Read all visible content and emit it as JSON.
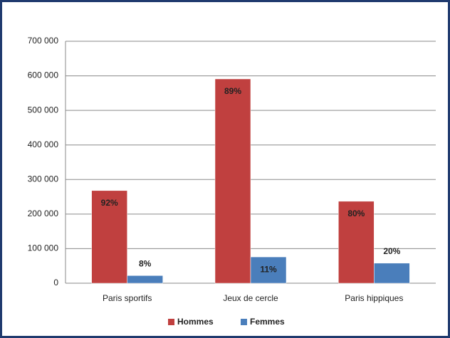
{
  "chart_data": {
    "type": "bar",
    "categories": [
      "Paris sportifs",
      "Jeux de cercle",
      "Paris hippiques"
    ],
    "series": [
      {
        "name": "Hommes",
        "color": "#c0403f",
        "values": [
          268000,
          591000,
          237000
        ],
        "share_labels": [
          "92%",
          "89%",
          "80%"
        ]
      },
      {
        "name": "Femmes",
        "color": "#4a7ebb",
        "values": [
          22000,
          76000,
          58000
        ],
        "share_labels": [
          "8%",
          "11%",
          "20%"
        ]
      }
    ],
    "ylim": [
      0,
      700000
    ],
    "yticks": [
      0,
      {
        "value": 100000,
        "label": "100 000"
      },
      {
        "value": 200000,
        "label": "200 000"
      },
      {
        "value": 300000,
        "label": "300 000"
      },
      {
        "value": 400000,
        "label": "400 000"
      },
      {
        "value": 500000,
        "label": "500 000"
      },
      {
        "value": 600000,
        "label": "600 000"
      },
      {
        "value": 700000,
        "label": "700 000"
      }
    ],
    "grid": true,
    "legend": "bottom"
  }
}
